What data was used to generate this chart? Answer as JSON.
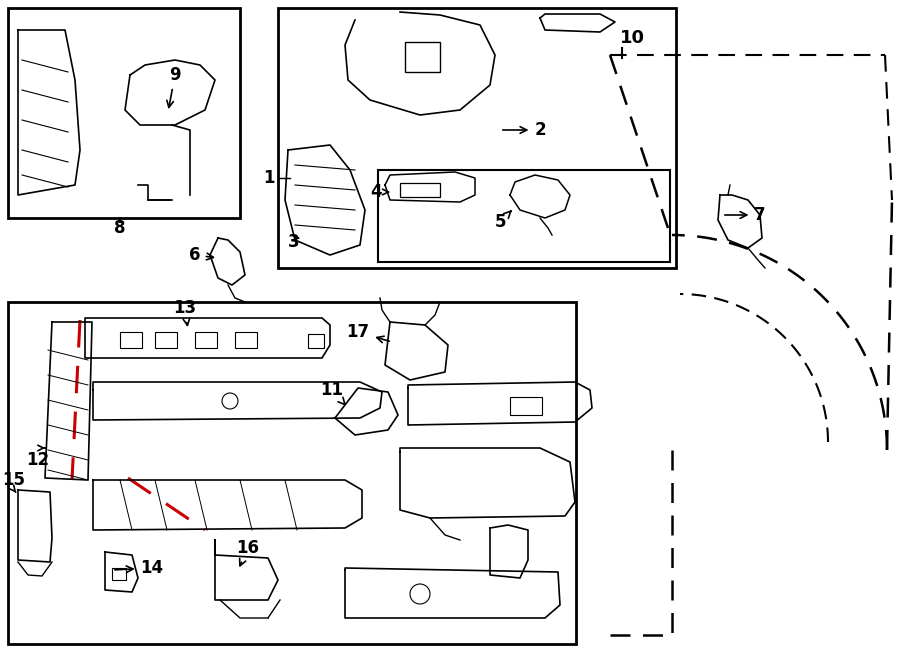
{
  "bg_color": "#ffffff",
  "line_color": "#000000",
  "red_color": "#cc0000"
}
